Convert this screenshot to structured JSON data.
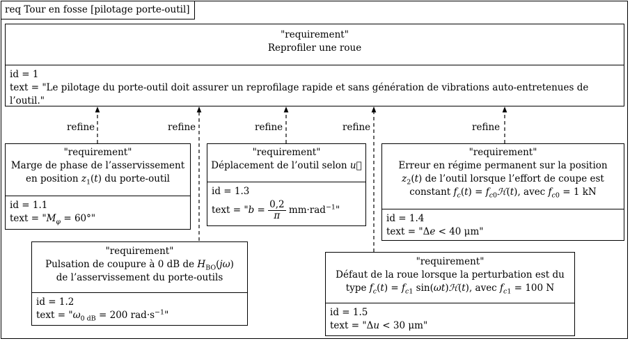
{
  "diagram": {
    "frame_title": "req Tour en fosse [pilotage porte-outil]",
    "stereotype": "\"requirement\"",
    "relation_label": "refine",
    "root": {
      "name": "Reprofiler une roue",
      "id": "id = 1",
      "text_line1": "text = \"Le pilotage du porte-outil doit assurer un reprofilage rapide et sans génération de vibrations auto-entretenues de",
      "text_line2": "l’outil.\""
    },
    "req_1_1": {
      "name_line1": "Marge de phase de l’asservissement",
      "name_pre": "en position ",
      "name_post": " du porte-outil",
      "id": "id = 1.1",
      "text_pre": "text = \"",
      "text_post": "\""
    },
    "req_1_2": {
      "name_pre": "Pulsation de coupure à 0 dB de ",
      "name_line2": "de l’asservissement du porte-outils",
      "id": "id = 1.2",
      "text_pre": "text = \"",
      "text_post": "\""
    },
    "req_1_3": {
      "name_pre": "Déplacement de l’outil selon ",
      "id": "id = 1.3",
      "text_pre": "text = \"",
      "text_mid": " mm·rad",
      "text_post": "\""
    },
    "req_1_4": {
      "name_line1": "Erreur en régime permanent sur la position",
      "name_line2_post": " de l’outil lorsque l’effort de coupe est",
      "name_line3_pre": "constant ",
      "name_line3_mid": ", avec ",
      "name_line3_post": " = 1 kN",
      "id": "id = 1.4",
      "text_pre": "text = \"",
      "text_post": " μm\""
    },
    "req_1_5": {
      "name_line1": "Défaut de la roue lorsque la perturbation est du",
      "name_line2_pre": "type ",
      "name_line2_mid": ", avec ",
      "name_line2_post": " = 100 N",
      "id": "id = 1.5",
      "text_pre": "text = \"",
      "text_post": " μm\""
    }
  }
}
